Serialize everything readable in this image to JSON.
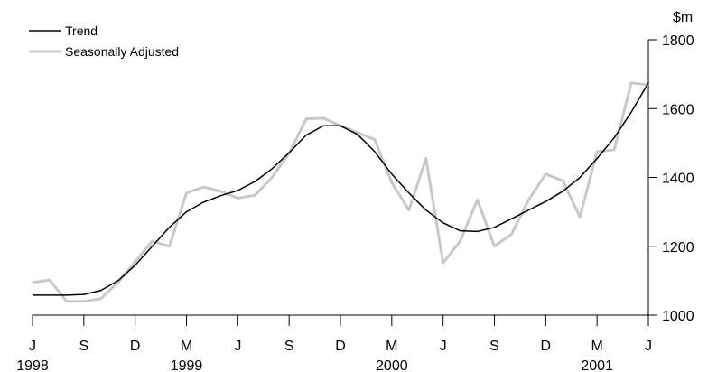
{
  "chart_data": {
    "type": "line",
    "title": "",
    "ylabel": "$m",
    "xlabel": "",
    "ylim": [
      1000,
      1800
    ],
    "y_ticks": [
      "1800",
      "1600",
      "1400",
      "1200",
      "1000"
    ],
    "y_axis_position": "right",
    "legend_position": "top-left",
    "grid": false,
    "x_month_labels": [
      "J",
      "S",
      "D",
      "M",
      "J",
      "S",
      "D",
      "M",
      "J",
      "S",
      "D",
      "M",
      "J"
    ],
    "x_year_labels": [
      "1998",
      "1999",
      "2000",
      "2001"
    ],
    "x": [
      "1998-06",
      "1998-07",
      "1998-08",
      "1998-09",
      "1998-10",
      "1998-11",
      "1998-12",
      "1999-01",
      "1999-02",
      "1999-03",
      "1999-04",
      "1999-05",
      "1999-06",
      "1999-07",
      "1999-08",
      "1999-09",
      "1999-10",
      "1999-11",
      "1999-12",
      "2000-01",
      "2000-02",
      "2000-03",
      "2000-04",
      "2000-05",
      "2000-06",
      "2000-07",
      "2000-08",
      "2000-09",
      "2000-10",
      "2000-11",
      "2000-12",
      "2001-01",
      "2001-02",
      "2001-03",
      "2001-04",
      "2001-05",
      "2001-06"
    ],
    "series": [
      {
        "name": "Trend",
        "color": "#000000",
        "values": [
          1058,
          1058,
          1058,
          1060,
          1072,
          1100,
          1145,
          1200,
          1255,
          1300,
          1328,
          1347,
          1362,
          1388,
          1425,
          1472,
          1523,
          1550,
          1550,
          1525,
          1475,
          1410,
          1355,
          1305,
          1268,
          1245,
          1243,
          1255,
          1280,
          1305,
          1330,
          1360,
          1400,
          1455,
          1515,
          1590,
          1675
        ]
      },
      {
        "name": "Seasonally Adjusted",
        "color": "#c8c8c8",
        "values": [
          1095,
          1102,
          1040,
          1040,
          1048,
          1095,
          1155,
          1215,
          1200,
          1355,
          1372,
          1360,
          1340,
          1348,
          1400,
          1470,
          1570,
          1572,
          1550,
          1530,
          1510,
          1385,
          1305,
          1455,
          1152,
          1215,
          1335,
          1200,
          1235,
          1335,
          1410,
          1390,
          1285,
          1475,
          1480,
          1675,
          1668
        ]
      }
    ]
  }
}
